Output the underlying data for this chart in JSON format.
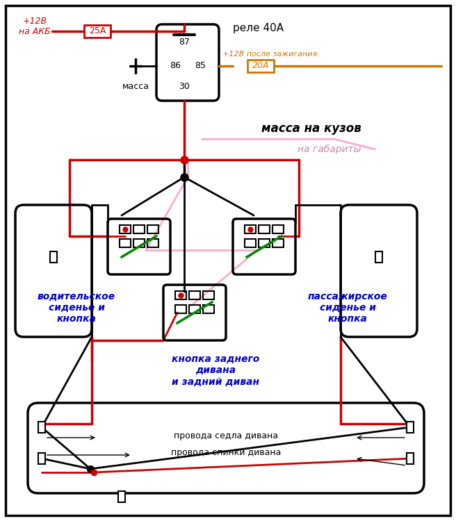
{
  "bg_color": "#ffffff",
  "border_color": "#000000",
  "red": "#cc0000",
  "dark_red": "#8b0000",
  "orange": "#cc7700",
  "pink": "#ffaacc",
  "blue_text": "#0000cc",
  "black": "#000000",
  "green": "#008800",
  "gray": "#888888",
  "title_top": "реле 40А",
  "label_akb": "+12В\nна АКБ",
  "label_25a": "25А",
  "label_20a": "20А",
  "label_ignition": "+12В после зажигания",
  "label_massa_kuzov": "масса на кузов",
  "label_gabarity": "на габариты",
  "label_86": "86",
  "label_87": "87",
  "label_85": "85",
  "label_30": "30",
  "label_massa": "масса",
  "label_driver": "водительское\nсиденье и\nкнопка",
  "label_passenger": "пассажирское\nсиденье и\nкнопка",
  "label_rear": "кнопка заднего\nдивана\nи задний диван",
  "label_seat_wires": "провода седла дивана",
  "label_back_wires": "провода спинки дивана"
}
